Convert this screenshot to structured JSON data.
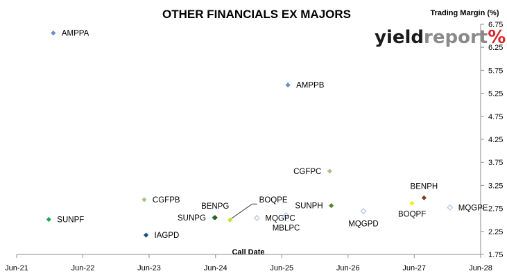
{
  "chart_data": {
    "type": "scatter",
    "title": "OTHER FINANCIALS EX MAJORS",
    "xlabel": "Call Date",
    "ylabel": "Trading Margin (%)",
    "xlim": [
      "2021-06-01",
      "2028-06-01"
    ],
    "ylim": [
      1.75,
      6.75
    ],
    "x_ticks": [
      {
        "date": "2021-06-01",
        "label": "Jun-21"
      },
      {
        "date": "2022-06-01",
        "label": "Jun-22"
      },
      {
        "date": "2023-06-01",
        "label": "Jun-23"
      },
      {
        "date": "2024-06-01",
        "label": "Jun-24"
      },
      {
        "date": "2025-06-01",
        "label": "Jun-25"
      },
      {
        "date": "2026-06-01",
        "label": "Jun-26"
      },
      {
        "date": "2027-06-01",
        "label": "Jun-27"
      },
      {
        "date": "2028-06-01",
        "label": "Jun-28"
      }
    ],
    "y_ticks": [
      "1.75",
      "2.25",
      "2.75",
      "3.25",
      "3.75",
      "4.25",
      "4.75",
      "5.25",
      "5.75",
      "6.25",
      "6.75"
    ],
    "y_axis_position": "right",
    "grid": false,
    "legend": "none",
    "points": [
      {
        "name": "AMPPA",
        "x": "2021-12-20",
        "y": 6.56,
        "color": "#6a8fc7",
        "filled": true
      },
      {
        "name": "AMPPB",
        "x": "2025-07-05",
        "y": 5.43,
        "color": "#6a8fc7",
        "filled": true
      },
      {
        "name": "CGFPC",
        "x": "2026-02-20",
        "y": 3.56,
        "color": "#a6c48a",
        "filled": true
      },
      {
        "name": "CGFPB",
        "x": "2023-05-05",
        "y": 2.94,
        "color": "#a6c48a",
        "filled": true
      },
      {
        "name": "SUNPF",
        "x": "2021-11-25",
        "y": 2.51,
        "color": "#1aaa55",
        "filled": true
      },
      {
        "name": "IAGPD",
        "x": "2023-05-15",
        "y": 2.17,
        "color": "#1f4e79",
        "filled": true
      },
      {
        "name": "SUNPG",
        "x": "2024-05-25",
        "y": 2.55,
        "color": "#1aaa55",
        "filled": true
      },
      {
        "name": "BENPG",
        "x": "2024-05-30",
        "y": 2.55,
        "color": "#375623",
        "filled": true
      },
      {
        "name": "BOQPE",
        "x": "2024-08-20",
        "y": 2.5,
        "color": "#ccdd33",
        "filled": true
      },
      {
        "name": "MQGPC",
        "x": "2025-01-15",
        "y": 2.54,
        "color": "#b4c7e7",
        "filled": false
      },
      {
        "name": "MBLPC",
        "x": "2025-06-25",
        "y": 2.6,
        "color": "#b4c7e7",
        "filled": false
      },
      {
        "name": "SUNPH",
        "x": "2026-03-01",
        "y": 2.81,
        "color": "#548235",
        "filled": true
      },
      {
        "name": "MQGPD",
        "x": "2026-08-25",
        "y": 2.69,
        "color": "#b4c7e7",
        "filled": false
      },
      {
        "name": "BOQPF",
        "x": "2027-05-20",
        "y": 2.86,
        "color": "#eeee22",
        "filled": true
      },
      {
        "name": "BENPH",
        "x": "2027-07-25",
        "y": 2.98,
        "color": "#7b3f1f",
        "filled": true
      },
      {
        "name": "MQGPE",
        "x": "2027-12-15",
        "y": 2.77,
        "color": "#b4c7e7",
        "filled": false
      }
    ]
  },
  "logo": {
    "part1": "yield",
    "part2": "report",
    "part3": "%"
  }
}
